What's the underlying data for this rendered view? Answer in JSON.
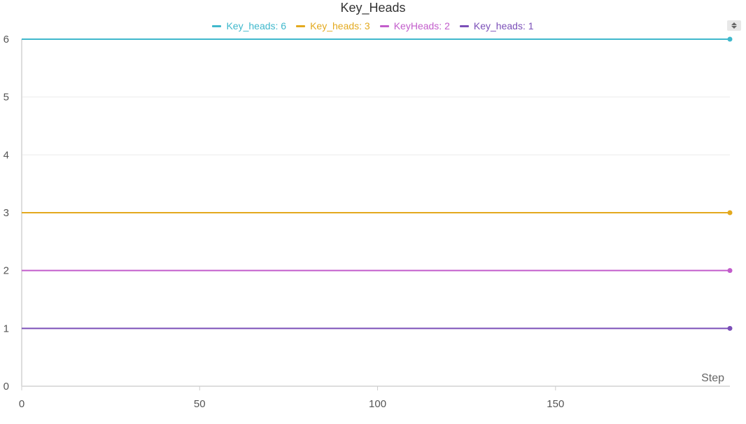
{
  "chart_data": {
    "type": "line",
    "title": "Key_Heads",
    "xlabel": "Step",
    "ylabel": "",
    "xlim": [
      0,
      199
    ],
    "ylim": [
      0,
      6
    ],
    "xticks": [
      0,
      50,
      100,
      150
    ],
    "yticks": [
      0,
      1,
      2,
      3,
      4,
      5,
      6
    ],
    "grid": "horizontal",
    "legend_position": "top-center",
    "series": [
      {
        "name": "Key_heads: 6",
        "color": "#3fb8cc",
        "x": [
          0,
          199
        ],
        "values": [
          6,
          6
        ]
      },
      {
        "name": "Key_heads: 3",
        "color": "#e3a91e",
        "x": [
          0,
          199
        ],
        "values": [
          3,
          3
        ]
      },
      {
        "name": "KeyHeads: 2",
        "color": "#c25ccb",
        "x": [
          0,
          199
        ],
        "values": [
          2,
          2
        ]
      },
      {
        "name": "Key_heads: 1",
        "color": "#7b4fb8",
        "x": [
          0,
          199
        ],
        "values": [
          1,
          1
        ]
      }
    ]
  }
}
